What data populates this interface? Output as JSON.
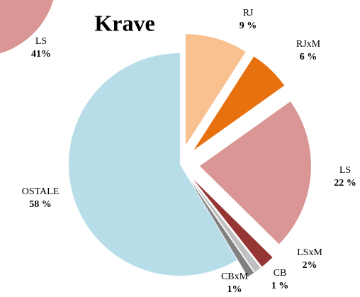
{
  "chart_data": [
    {
      "type": "pie",
      "title": "Krave",
      "categories": [
        "RJ",
        "RJxM",
        "LS",
        "LSxM",
        "CB",
        "CBxM",
        "OSTALE"
      ],
      "values": [
        9,
        6,
        22,
        2,
        1,
        1,
        58
      ],
      "value_labels": [
        "9 %",
        "6 %",
        "22 %",
        "2%",
        "1 %",
        "1%",
        "58 %"
      ],
      "colors": [
        "#f9c090",
        "#e8710f",
        "#d99694",
        "#963634",
        "#c0c0c0",
        "#808080",
        "#b7dde8"
      ]
    },
    {
      "type": "pie",
      "categories": [
        "LS"
      ],
      "values": [
        41
      ],
      "value_labels": [
        "41%"
      ],
      "colors": [
        "#d99694"
      ]
    }
  ]
}
